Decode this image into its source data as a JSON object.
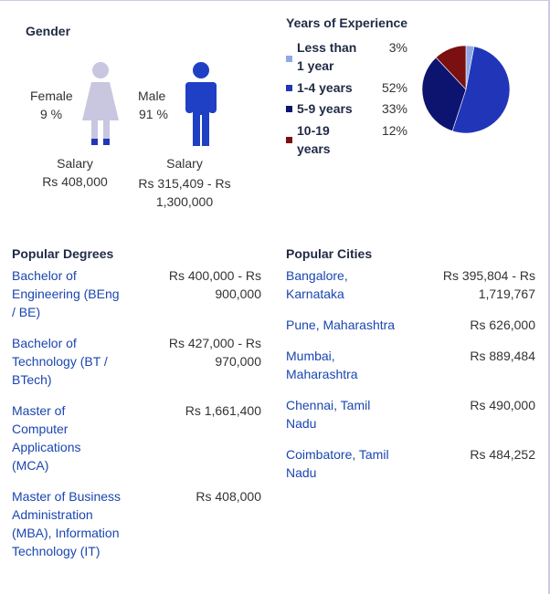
{
  "gender": {
    "title": "Gender",
    "female": {
      "label": "Female",
      "percent": "9 %",
      "salary_label": "Salary",
      "salary": "Rs 408,000",
      "figure_color": "#c9c6e0"
    },
    "male": {
      "label": "Male",
      "percent": "91 %",
      "salary_label": "Salary",
      "salary": "Rs 315,409 - Rs 1,300,000",
      "figure_color": "#1f3fc4"
    }
  },
  "experience": {
    "title": "Years of Experience",
    "items": [
      {
        "label": "Less than 1 year",
        "percent": "3%",
        "value": 3,
        "color": "#8fa8e8"
      },
      {
        "label": "1-4 years",
        "percent": "52%",
        "value": 52,
        "color": "#2035b8"
      },
      {
        "label": "5-9 years",
        "percent": "33%",
        "value": 33,
        "color": "#0d1470"
      },
      {
        "label": "10-19 years",
        "percent": "12%",
        "value": 12,
        "color": "#7a1010"
      }
    ]
  },
  "degrees": {
    "title": "Popular Degrees",
    "rows": [
      {
        "name": "Bachelor of Engineering (BEng / BE)",
        "salary": "Rs 400,000 - Rs 900,000"
      },
      {
        "name": "Bachelor of Technology (BT / BTech)",
        "salary": "Rs 427,000 - Rs 970,000"
      },
      {
        "name": "Master of Computer Applications (MCA)",
        "salary": "Rs 1,661,400"
      },
      {
        "name": "Master of Business Administration (MBA), Information Technology (IT)",
        "salary": "Rs 408,000"
      }
    ]
  },
  "cities": {
    "title": "Popular Cities",
    "rows": [
      {
        "name": "Bangalore, Karnataka",
        "salary": "Rs 395,804 - Rs 1,719,767"
      },
      {
        "name": "Pune, Maharashtra",
        "salary": "Rs 626,000"
      },
      {
        "name": "Mumbai, Maharashtra",
        "salary": "Rs 889,484"
      },
      {
        "name": "Chennai, Tamil Nadu",
        "salary": "Rs 490,000"
      },
      {
        "name": "Coimbatore, Tamil Nadu",
        "salary": "Rs 484,252"
      }
    ]
  }
}
